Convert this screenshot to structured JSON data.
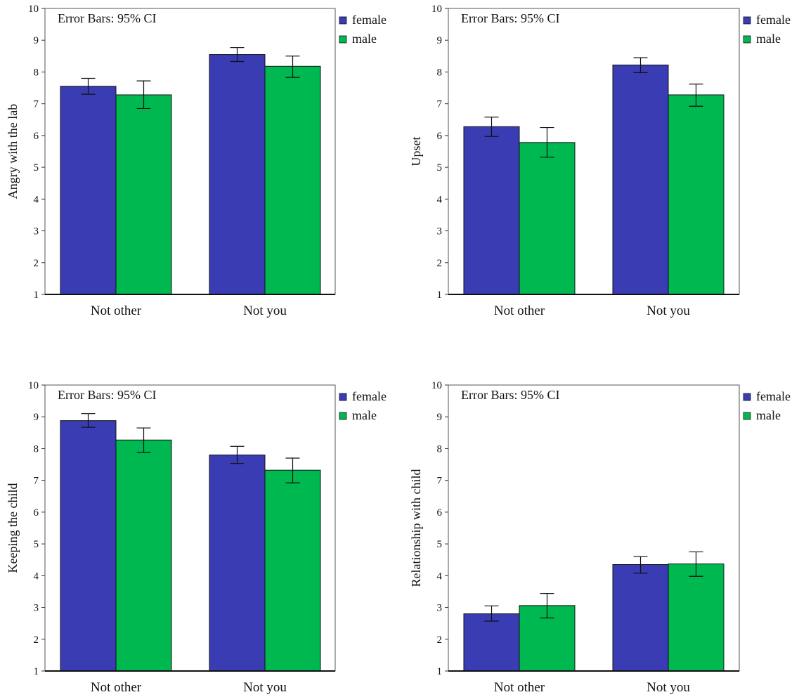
{
  "chart_data": [
    {
      "type": "bar",
      "annotation": "Error Bars: 95% CI",
      "ylabel": "Angry with the lab",
      "ylim": [
        1,
        10
      ],
      "yticks": [
        1,
        2,
        3,
        4,
        5,
        6,
        7,
        8,
        9,
        10
      ],
      "categories": [
        "Not other",
        "Not you"
      ],
      "series": [
        {
          "name": "female",
          "color": "#3a3cb4",
          "values": [
            7.55,
            8.55
          ],
          "ci_low": [
            7.3,
            8.33
          ],
          "ci_high": [
            7.8,
            8.77
          ]
        },
        {
          "name": "male",
          "color": "#00b850",
          "values": [
            7.28,
            8.18
          ],
          "ci_low": [
            6.85,
            7.83
          ],
          "ci_high": [
            7.72,
            8.5
          ]
        }
      ],
      "legend": "outside-top-right",
      "grid": false
    },
    {
      "type": "bar",
      "annotation": "Error Bars: 95% CI",
      "ylabel": "Upset",
      "ylim": [
        1,
        10
      ],
      "yticks": [
        1,
        2,
        3,
        4,
        5,
        6,
        7,
        8,
        9,
        10
      ],
      "categories": [
        "Not other",
        "Not you"
      ],
      "series": [
        {
          "name": "female",
          "color": "#3a3cb4",
          "values": [
            6.28,
            8.22
          ],
          "ci_low": [
            5.97,
            7.98
          ],
          "ci_high": [
            6.58,
            8.45
          ]
        },
        {
          "name": "male",
          "color": "#00b850",
          "values": [
            5.78,
            7.28
          ],
          "ci_low": [
            5.32,
            6.92
          ],
          "ci_high": [
            6.25,
            7.62
          ]
        }
      ],
      "legend": "outside-top-right",
      "grid": false
    },
    {
      "type": "bar",
      "annotation": "Error Bars: 95% CI",
      "ylabel": "Keeping the child",
      "ylim": [
        1,
        10
      ],
      "yticks": [
        1,
        2,
        3,
        4,
        5,
        6,
        7,
        8,
        9,
        10
      ],
      "categories": [
        "Not other",
        "Not you"
      ],
      "series": [
        {
          "name": "female",
          "color": "#3a3cb4",
          "values": [
            8.88,
            7.8
          ],
          "ci_low": [
            8.67,
            7.53
          ],
          "ci_high": [
            9.1,
            8.07
          ]
        },
        {
          "name": "male",
          "color": "#00b850",
          "values": [
            8.27,
            7.32
          ],
          "ci_low": [
            7.88,
            6.92
          ],
          "ci_high": [
            8.65,
            7.7
          ]
        }
      ],
      "legend": "outside-top-right",
      "grid": false
    },
    {
      "type": "bar",
      "annotation": "Error Bars: 95% CI",
      "ylabel": "Relationship with child",
      "ylim": [
        1,
        10
      ],
      "yticks": [
        1,
        2,
        3,
        4,
        5,
        6,
        7,
        8,
        9,
        10
      ],
      "categories": [
        "Not other",
        "Not you"
      ],
      "series": [
        {
          "name": "female",
          "color": "#3a3cb4",
          "values": [
            2.8,
            4.35
          ],
          "ci_low": [
            2.57,
            4.08
          ],
          "ci_high": [
            3.05,
            4.6
          ]
        },
        {
          "name": "male",
          "color": "#00b850",
          "values": [
            3.06,
            4.37
          ],
          "ci_low": [
            2.67,
            3.98
          ],
          "ci_high": [
            3.44,
            4.75
          ]
        }
      ],
      "legend": "outside-top-right",
      "grid": false
    }
  ]
}
